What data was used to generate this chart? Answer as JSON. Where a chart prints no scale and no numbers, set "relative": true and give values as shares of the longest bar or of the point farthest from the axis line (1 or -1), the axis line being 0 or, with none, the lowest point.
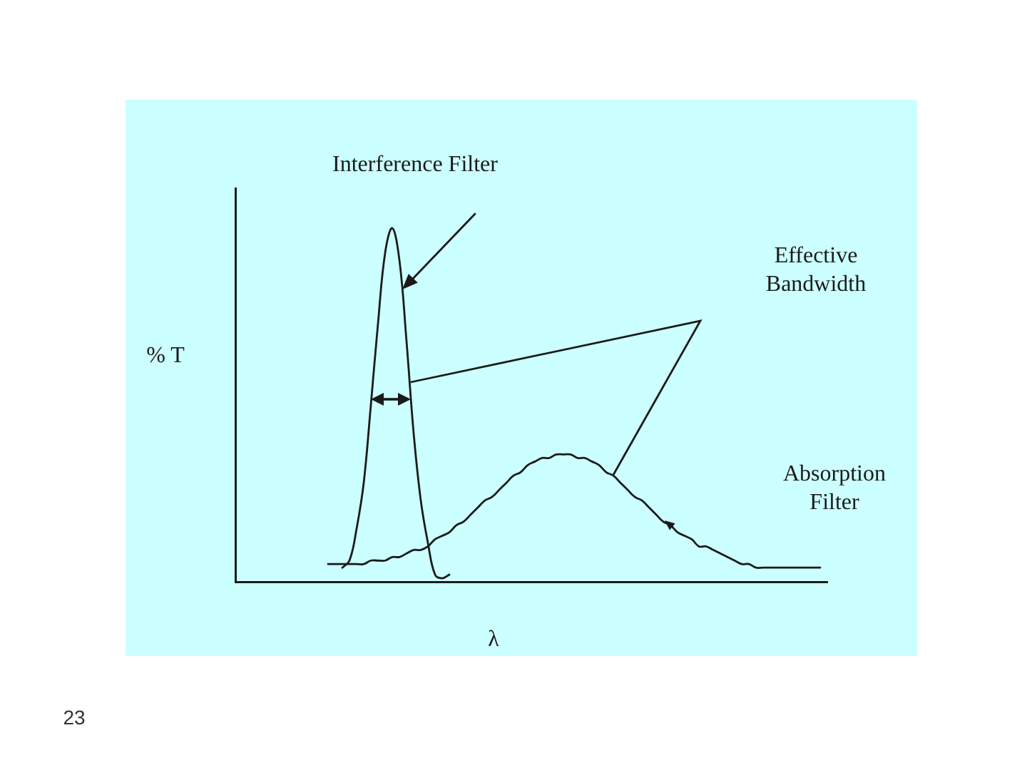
{
  "chart_data": {
    "type": "line",
    "relative": true,
    "xlabel": "λ",
    "ylabel": "% T",
    "annotations": [
      "Effective Bandwidth",
      "23"
    ],
    "categories": [
      null,
      null,
      null,
      null,
      null,
      null,
      null,
      null,
      null,
      null,
      null,
      null,
      null,
      null,
      null,
      null,
      null,
      null,
      null,
      null,
      null,
      null,
      null,
      null,
      null,
      null,
      null,
      null,
      null,
      null,
      null,
      null,
      null,
      null,
      null,
      null,
      null,
      null,
      null,
      null,
      null,
      null,
      null,
      null,
      null,
      null,
      null,
      null,
      null,
      null,
      null,
      null,
      null,
      null,
      null,
      null,
      null,
      null,
      null,
      null,
      null,
      null,
      null,
      null,
      null,
      null,
      null,
      null,
      null,
      null,
      null,
      null,
      null,
      null,
      null,
      null,
      null,
      null,
      null,
      null,
      null,
      null,
      null,
      null
    ],
    "series": [
      {
        "name": "Interference Filter",
        "color": "#1a1a1a",
        "values": [
          null,
          null,
          null,
          null,
          null,
          null,
          null,
          null,
          null,
          null,
          null,
          null,
          null,
          null,
          null,
          0.04,
          0.06,
          0.15,
          0.28,
          0.5,
          0.73,
          0.93,
          1,
          0.91,
          0.68,
          0.42,
          0.23,
          0.11,
          0.02,
          0.01,
          0.02,
          null,
          null,
          null,
          null,
          null,
          null,
          null,
          null,
          null,
          null,
          null,
          null,
          null,
          null,
          null,
          null,
          null,
          null,
          null,
          null,
          null,
          null,
          null,
          null,
          null,
          null,
          null,
          null,
          null,
          null,
          null,
          null,
          null,
          null,
          null,
          null,
          null,
          null,
          null,
          null,
          null,
          null,
          null,
          null,
          null,
          null,
          null,
          null,
          null,
          null,
          null,
          null,
          null
        ]
      },
      {
        "name": "Absorption Filter",
        "color": "#1a1a1a",
        "values": [
          null,
          null,
          null,
          null,
          null,
          null,
          null,
          null,
          null,
          null,
          null,
          null,
          null,
          0.05,
          0.05,
          0.05,
          0.05,
          0.05,
          0.05,
          0.06,
          0.06,
          0.06,
          0.07,
          0.07,
          0.08,
          0.09,
          0.09,
          0.1,
          0.12,
          0.13,
          0.14,
          0.16,
          0.17,
          0.19,
          0.21,
          0.23,
          0.24,
          0.26,
          0.28,
          0.3,
          0.31,
          0.33,
          0.34,
          0.35,
          0.35,
          0.36,
          0.36,
          0.36,
          0.35,
          0.35,
          0.34,
          0.33,
          0.31,
          0.3,
          0.28,
          0.26,
          0.24,
          0.23,
          0.21,
          0.19,
          0.17,
          0.16,
          0.14,
          0.13,
          0.12,
          0.1,
          0.1,
          0.09,
          0.08,
          0.07,
          0.06,
          0.05,
          0.05,
          0.04,
          0.04,
          0.04,
          0.04,
          0.04,
          0.04,
          0.04,
          0.04,
          0.04,
          0.04,
          null
        ]
      }
    ]
  }
}
